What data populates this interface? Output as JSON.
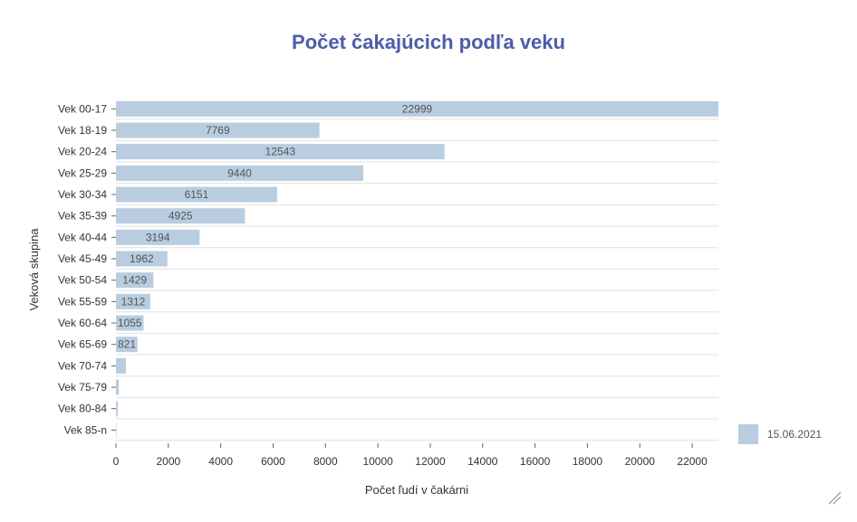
{
  "chart_data": {
    "type": "bar",
    "orientation": "horizontal",
    "title": "Počet čakajúcich podľa veku",
    "xlabel": "Počet ľudí v čakárni",
    "ylabel": "Veková skupina",
    "categories": [
      "Vek 00-17",
      "Vek 18-19",
      "Vek 20-24",
      "Vek 25-29",
      "Vek 30-34",
      "Vek 35-39",
      "Vek 40-44",
      "Vek 45-49",
      "Vek 50-54",
      "Vek 55-59",
      "Vek 60-64",
      "Vek 65-69",
      "Vek 70-74",
      "Vek 75-79",
      "Vek 80-84",
      "Vek 85-n"
    ],
    "series": [
      {
        "name": "15.06.2021",
        "color": "#b8cde0",
        "values": [
          22999,
          7769,
          12543,
          9440,
          6151,
          4925,
          3194,
          1962,
          1429,
          1312,
          1055,
          821,
          380,
          110,
          70,
          5
        ]
      }
    ],
    "data_labels": [
      "22999",
      "7769",
      "12543",
      "9440",
      "6151",
      "4925",
      "3194",
      "1962",
      "1429",
      "1312",
      "1055",
      "821",
      "",
      "",
      "",
      ""
    ],
    "xlim": [
      0,
      23000
    ],
    "xticks": [
      "0",
      "2000",
      "4000",
      "6000",
      "8000",
      "10000",
      "12000",
      "14000",
      "16000",
      "18000",
      "20000",
      "22000"
    ],
    "legend_position": "right-bottom",
    "grid": true
  }
}
